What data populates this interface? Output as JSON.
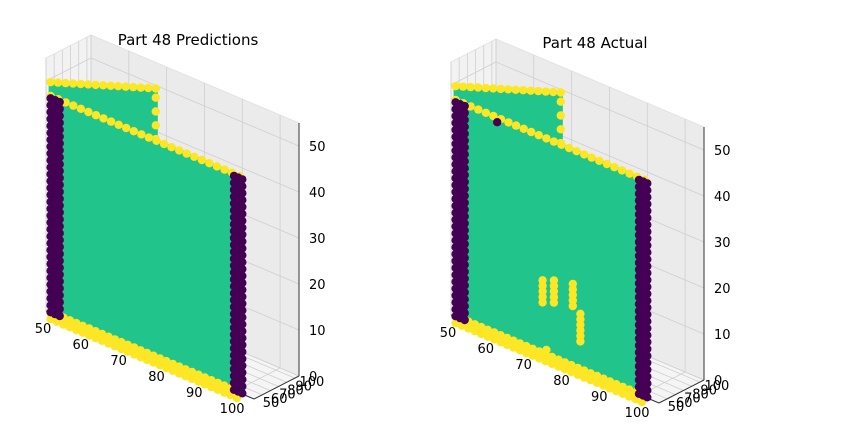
{
  "chart_data": [
    {
      "type": "scatter3d",
      "title": "Part 48 Predictions",
      "xlabel": "",
      "ylabel": "",
      "zlabel": "",
      "x_ticks": [
        50,
        60,
        70,
        80,
        90,
        100
      ],
      "y_ticks": [
        50,
        60,
        70,
        80,
        90,
        100
      ],
      "z_ticks": [
        0,
        10,
        20,
        30,
        40,
        50
      ],
      "xlim": [
        50,
        105
      ],
      "ylim": [
        50,
        105
      ],
      "zlim": [
        0,
        55
      ],
      "grid": true,
      "class_colors": {
        "edge": "#fde725",
        "wall": "#21c58c",
        "corner": "#440154"
      },
      "surfaces": [
        {
          "name": "front-wall",
          "x": [
            51,
            101
          ],
          "y": 51,
          "z": [
            0,
            47
          ],
          "class": "wall"
        },
        {
          "name": "back-wall",
          "x": [
            51,
            68
          ],
          "y": [
            51,
            101
          ],
          "z": [
            0,
            50
          ],
          "class": "wall"
        },
        {
          "name": "top-edge",
          "x": [
            51,
            101
          ],
          "y": 51,
          "z": 47,
          "class": "edge"
        },
        {
          "name": "bottom-edge",
          "x": [
            51,
            101
          ],
          "y": 51,
          "z": 0,
          "class": "edge"
        },
        {
          "name": "back-vertical-edge",
          "x": 68,
          "y": 101,
          "z": [
            0,
            50
          ],
          "class": "edge"
        },
        {
          "name": "left-corner",
          "x": 51,
          "y": 51,
          "z": [
            0,
            47
          ],
          "class": "corner"
        },
        {
          "name": "right-corner",
          "x": 101,
          "y": 51,
          "z": [
            0,
            47
          ],
          "class": "corner"
        }
      ],
      "patches": []
    },
    {
      "type": "scatter3d",
      "title": "Part 48 Actual",
      "xlabel": "",
      "ylabel": "",
      "zlabel": "",
      "x_ticks": [
        50,
        60,
        70,
        80,
        90,
        100
      ],
      "y_ticks": [
        50,
        60,
        70,
        80,
        90,
        100
      ],
      "z_ticks": [
        0,
        10,
        20,
        30,
        40,
        50
      ],
      "xlim": [
        50,
        105
      ],
      "ylim": [
        50,
        105
      ],
      "zlim": [
        0,
        55
      ],
      "grid": true,
      "class_colors": {
        "edge": "#fde725",
        "wall": "#21c58c",
        "corner": "#440154"
      },
      "surfaces": [
        {
          "name": "front-wall",
          "x": [
            51,
            101
          ],
          "y": 51,
          "z": [
            0,
            47
          ],
          "class": "wall"
        },
        {
          "name": "back-wall",
          "x": [
            51,
            68
          ],
          "y": [
            51,
            101
          ],
          "z": [
            0,
            50
          ],
          "class": "wall"
        },
        {
          "name": "top-edge",
          "x": [
            51,
            101
          ],
          "y": 51,
          "z": 47,
          "class": "edge"
        },
        {
          "name": "bottom-edge",
          "x": [
            51,
            101
          ],
          "y": 51,
          "z": 0,
          "class": "edge"
        },
        {
          "name": "back-vertical-edge",
          "x": 68,
          "y": 101,
          "z": [
            0,
            50
          ],
          "class": "edge"
        },
        {
          "name": "left-corner",
          "x": 51,
          "y": 51,
          "z": [
            0,
            47
          ],
          "class": "corner"
        },
        {
          "name": "right-corner",
          "x": 101,
          "y": 51,
          "z": [
            0,
            47
          ],
          "class": "corner"
        }
      ],
      "patches": [
        {
          "x": 74,
          "y": 51,
          "z": [
            11,
            16
          ],
          "class": "edge"
        },
        {
          "x": 77,
          "y": 51,
          "z": [
            12,
            17
          ],
          "class": "edge"
        },
        {
          "x": 82,
          "y": 51,
          "z": [
            13,
            18
          ],
          "class": "edge"
        },
        {
          "x": 84,
          "y": 51,
          "z": [
            6,
            12
          ],
          "class": "edge"
        },
        {
          "x": 75,
          "y": 51,
          "z": [
            1,
            2
          ],
          "class": "edge"
        },
        {
          "x": 53,
          "y": 51,
          "z": [
            9,
            11
          ],
          "class": "corner"
        },
        {
          "x": 53,
          "y": 51,
          "z": [
            19,
            21
          ],
          "class": "corner"
        },
        {
          "x": 53,
          "y": 51,
          "z": [
            30,
            32
          ],
          "class": "corner"
        },
        {
          "x": 53,
          "y": 51,
          "z": [
            38,
            40
          ],
          "class": "corner"
        },
        {
          "x": 62,
          "y": 51,
          "z": [
            46,
            47
          ],
          "class": "corner"
        }
      ]
    }
  ]
}
